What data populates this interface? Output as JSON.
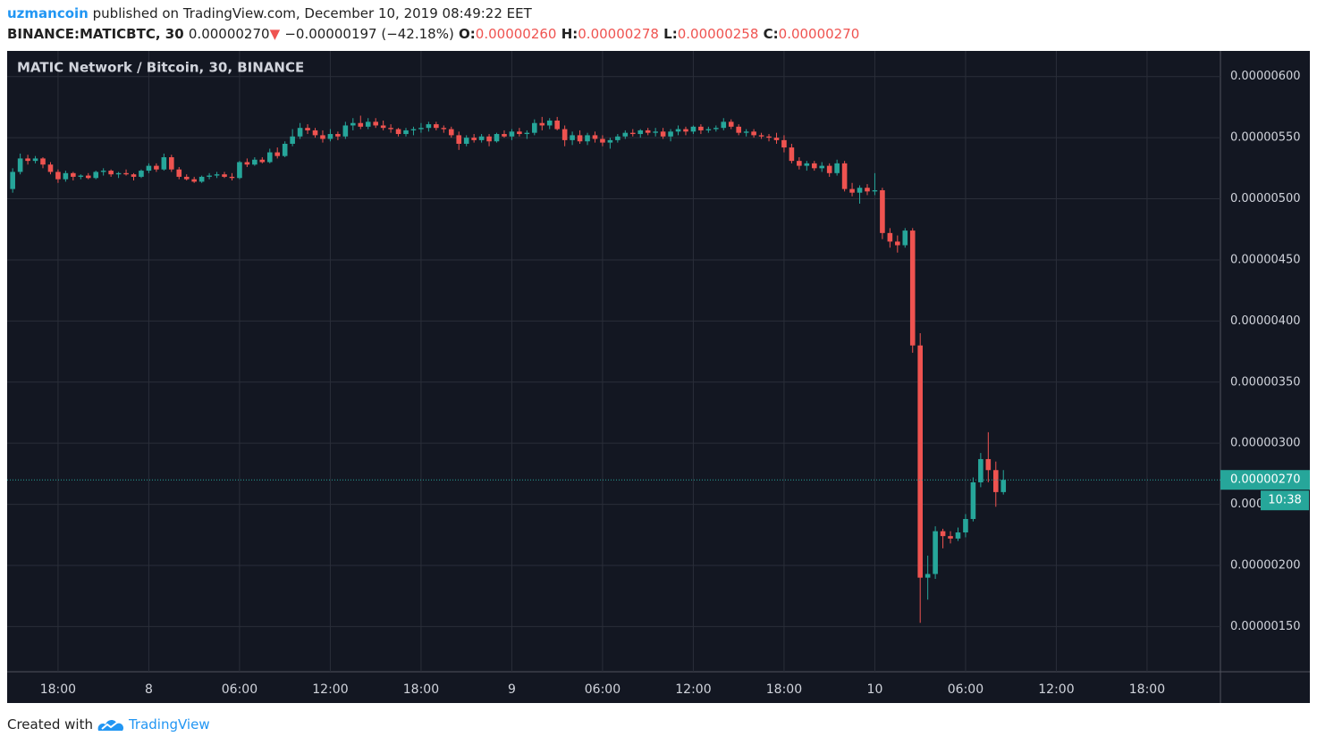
{
  "header": {
    "author": "uzmancoin",
    "published": "published on TradingView.com, December 10, 2019 08:49:22 EET",
    "symbol": "BINANCE:MATICBTC, 30",
    "last": "0.00000270",
    "arrow": "▼",
    "change": "−0.00000197 (−42.18%)",
    "o_label": "O:",
    "o": "0.00000260",
    "h_label": "H:",
    "h": "0.00000278",
    "l_label": "L:",
    "l": "0.00000258",
    "c_label": "C:",
    "c": "0.00000270"
  },
  "footer": {
    "created": "Created with",
    "brand": "TradingView"
  },
  "chart_data": {
    "type": "candlestick",
    "title": "MATIC Network / Bitcoin, 30, BINANCE",
    "up_color": "#26a69a",
    "down_color": "#ef5350",
    "grid": true,
    "xlim": [
      -0.73,
      159.7
    ],
    "xticks": [
      {
        "value": 6,
        "label": "18:00"
      },
      {
        "value": 18,
        "label": "8"
      },
      {
        "value": 30,
        "label": "06:00"
      },
      {
        "value": 42,
        "label": "12:00"
      },
      {
        "value": 54,
        "label": "18:00"
      },
      {
        "value": 66,
        "label": "9"
      },
      {
        "value": 78,
        "label": "06:00"
      },
      {
        "value": 90,
        "label": "12:00"
      },
      {
        "value": 102,
        "label": "18:00"
      },
      {
        "value": 114,
        "label": "10"
      },
      {
        "value": 126,
        "label": "06:00"
      },
      {
        "value": 138,
        "label": "12:00"
      },
      {
        "value": 150,
        "label": "18:00"
      }
    ],
    "ylim": [
      1.13e-06,
      6.21e-06
    ],
    "yticks": [
      {
        "value": 1.5e-06,
        "label": "0.00000150"
      },
      {
        "value": 2e-06,
        "label": "0.00000200"
      },
      {
        "value": 2.5e-06,
        "label": "0.00000250"
      },
      {
        "value": 3e-06,
        "label": "0.00000300"
      },
      {
        "value": 3.5e-06,
        "label": "0.00000350"
      },
      {
        "value": 4e-06,
        "label": "0.00000400"
      },
      {
        "value": 4.5e-06,
        "label": "0.00000450"
      },
      {
        "value": 5e-06,
        "label": "0.00000500"
      },
      {
        "value": 5.5e-06,
        "label": "0.00000550"
      },
      {
        "value": 6e-06,
        "label": "0.00000600"
      }
    ],
    "last_price": {
      "value": 2.7e-06,
      "label": "0.00000270"
    },
    "countdown": "10:38",
    "ohlc": [
      [
        5.08e-06,
        5.25e-06,
        5.05e-06,
        5.22e-06
      ],
      [
        5.22e-06,
        5.37e-06,
        5.2e-06,
        5.33e-06
      ],
      [
        5.33e-06,
        5.36e-06,
        5.28e-06,
        5.31e-06
      ],
      [
        5.31e-06,
        5.35e-06,
        5.29e-06,
        5.33e-06
      ],
      [
        5.33e-06,
        5.34e-06,
        5.25e-06,
        5.28e-06
      ],
      [
        5.28e-06,
        5.3e-06,
        5.2e-06,
        5.22e-06
      ],
      [
        5.22e-06,
        5.24e-06,
        5.13e-06,
        5.16e-06
      ],
      [
        5.16e-06,
        5.23e-06,
        5.14e-06,
        5.21e-06
      ],
      [
        5.21e-06,
        5.22e-06,
        5.15e-06,
        5.18e-06
      ],
      [
        5.18e-06,
        5.2e-06,
        5.16e-06,
        5.19e-06
      ],
      [
        5.19e-06,
        5.21e-06,
        5.16e-06,
        5.17e-06
      ],
      [
        5.17e-06,
        5.23e-06,
        5.16e-06,
        5.22e-06
      ],
      [
        5.22e-06,
        5.25e-06,
        5.19e-06,
        5.23e-06
      ],
      [
        5.23e-06,
        5.24e-06,
        5.18e-06,
        5.2e-06
      ],
      [
        5.2e-06,
        5.22e-06,
        5.17e-06,
        5.21e-06
      ],
      [
        5.21e-06,
        5.24e-06,
        5.19e-06,
        5.2e-06
      ],
      [
        5.2e-06,
        5.21e-06,
        5.15e-06,
        5.18e-06
      ],
      [
        5.18e-06,
        5.24e-06,
        5.17e-06,
        5.23e-06
      ],
      [
        5.23e-06,
        5.29e-06,
        5.21e-06,
        5.27e-06
      ],
      [
        5.27e-06,
        5.29e-06,
        5.22e-06,
        5.24e-06
      ],
      [
        5.24e-06,
        5.37e-06,
        5.23e-06,
        5.34e-06
      ],
      [
        5.34e-06,
        5.36e-06,
        5.22e-06,
        5.24e-06
      ],
      [
        5.24e-06,
        5.26e-06,
        5.16e-06,
        5.18e-06
      ],
      [
        5.18e-06,
        5.2e-06,
        5.15e-06,
        5.16e-06
      ],
      [
        5.16e-06,
        5.18e-06,
        5.13e-06,
        5.14e-06
      ],
      [
        5.14e-06,
        5.19e-06,
        5.13e-06,
        5.18e-06
      ],
      [
        5.18e-06,
        5.21e-06,
        5.16e-06,
        5.19e-06
      ],
      [
        5.19e-06,
        5.22e-06,
        5.17e-06,
        5.2e-06
      ],
      [
        5.2e-06,
        5.22e-06,
        5.17e-06,
        5.18e-06
      ],
      [
        5.18e-06,
        5.21e-06,
        5.15e-06,
        5.17e-06
      ],
      [
        5.17e-06,
        5.31e-06,
        5.16e-06,
        5.3e-06
      ],
      [
        5.3e-06,
        5.33e-06,
        5.26e-06,
        5.28e-06
      ],
      [
        5.28e-06,
        5.34e-06,
        5.27e-06,
        5.32e-06
      ],
      [
        5.32e-06,
        5.34e-06,
        5.29e-06,
        5.3e-06
      ],
      [
        5.3e-06,
        5.41e-06,
        5.29e-06,
        5.38e-06
      ],
      [
        5.38e-06,
        5.42e-06,
        5.33e-06,
        5.35e-06
      ],
      [
        5.35e-06,
        5.47e-06,
        5.34e-06,
        5.45e-06
      ],
      [
        5.45e-06,
        5.57e-06,
        5.43e-06,
        5.51e-06
      ],
      [
        5.51e-06,
        5.62e-06,
        5.49e-06,
        5.58e-06
      ],
      [
        5.58e-06,
        5.61e-06,
        5.53e-06,
        5.56e-06
      ],
      [
        5.56e-06,
        5.58e-06,
        5.5e-06,
        5.52e-06
      ],
      [
        5.52e-06,
        5.56e-06,
        5.46e-06,
        5.49e-06
      ],
      [
        5.49e-06,
        5.57e-06,
        5.47e-06,
        5.53e-06
      ],
      [
        5.53e-06,
        5.55e-06,
        5.48e-06,
        5.51e-06
      ],
      [
        5.51e-06,
        5.63e-06,
        5.49e-06,
        5.6e-06
      ],
      [
        5.6e-06,
        5.66e-06,
        5.56e-06,
        5.62e-06
      ],
      [
        5.62e-06,
        5.68e-06,
        5.57e-06,
        5.59e-06
      ],
      [
        5.59e-06,
        5.66e-06,
        5.57e-06,
        5.63e-06
      ],
      [
        5.63e-06,
        5.66e-06,
        5.58e-06,
        5.6e-06
      ],
      [
        5.6e-06,
        5.64e-06,
        5.56e-06,
        5.58e-06
      ],
      [
        5.58e-06,
        5.61e-06,
        5.54e-06,
        5.57e-06
      ],
      [
        5.57e-06,
        5.58e-06,
        5.51e-06,
        5.53e-06
      ],
      [
        5.53e-06,
        5.58e-06,
        5.51e-06,
        5.56e-06
      ],
      [
        5.56e-06,
        5.59e-06,
        5.52e-06,
        5.57e-06
      ],
      [
        5.57e-06,
        5.62e-06,
        5.54e-06,
        5.58e-06
      ],
      [
        5.58e-06,
        5.63e-06,
        5.55e-06,
        5.61e-06
      ],
      [
        5.61e-06,
        5.63e-06,
        5.56e-06,
        5.58e-06
      ],
      [
        5.58e-06,
        5.6e-06,
        5.54e-06,
        5.57e-06
      ],
      [
        5.57e-06,
        5.59e-06,
        5.5e-06,
        5.52e-06
      ],
      [
        5.52e-06,
        5.55e-06,
        5.4e-06,
        5.45e-06
      ],
      [
        5.45e-06,
        5.52e-06,
        5.43e-06,
        5.5e-06
      ],
      [
        5.5e-06,
        5.53e-06,
        5.46e-06,
        5.48e-06
      ],
      [
        5.48e-06,
        5.53e-06,
        5.46e-06,
        5.51e-06
      ],
      [
        5.51e-06,
        5.53e-06,
        5.43e-06,
        5.47e-06
      ],
      [
        5.47e-06,
        5.54e-06,
        5.46e-06,
        5.53e-06
      ],
      [
        5.53e-06,
        5.56e-06,
        5.5e-06,
        5.51e-06
      ],
      [
        5.51e-06,
        5.57e-06,
        5.48e-06,
        5.55e-06
      ],
      [
        5.55e-06,
        5.58e-06,
        5.51e-06,
        5.53e-06
      ],
      [
        5.53e-06,
        5.56e-06,
        5.49e-06,
        5.54e-06
      ],
      [
        5.54e-06,
        5.65e-06,
        5.52e-06,
        5.62e-06
      ],
      [
        5.62e-06,
        5.67e-06,
        5.56e-06,
        5.6e-06
      ],
      [
        5.6e-06,
        5.66e-06,
        5.57e-06,
        5.64e-06
      ],
      [
        5.64e-06,
        5.67e-06,
        5.56e-06,
        5.57e-06
      ],
      [
        5.57e-06,
        5.6e-06,
        5.43e-06,
        5.48e-06
      ],
      [
        5.48e-06,
        5.55e-06,
        5.44e-06,
        5.52e-06
      ],
      [
        5.52e-06,
        5.56e-06,
        5.45e-06,
        5.47e-06
      ],
      [
        5.47e-06,
        5.54e-06,
        5.44e-06,
        5.52e-06
      ],
      [
        5.52e-06,
        5.55e-06,
        5.46e-06,
        5.49e-06
      ],
      [
        5.49e-06,
        5.52e-06,
        5.43e-06,
        5.46e-06
      ],
      [
        5.46e-06,
        5.5e-06,
        5.41e-06,
        5.48e-06
      ],
      [
        5.48e-06,
        5.53e-06,
        5.46e-06,
        5.51e-06
      ],
      [
        5.51e-06,
        5.56e-06,
        5.49e-06,
        5.54e-06
      ],
      [
        5.54e-06,
        5.57e-06,
        5.51e-06,
        5.53e-06
      ],
      [
        5.53e-06,
        5.57e-06,
        5.5e-06,
        5.56e-06
      ],
      [
        5.56e-06,
        5.58e-06,
        5.52e-06,
        5.54e-06
      ],
      [
        5.54e-06,
        5.58e-06,
        5.51e-06,
        5.55e-06
      ],
      [
        5.55e-06,
        5.58e-06,
        5.49e-06,
        5.51e-06
      ],
      [
        5.51e-06,
        5.57e-06,
        5.47e-06,
        5.55e-06
      ],
      [
        5.55e-06,
        5.6e-06,
        5.52e-06,
        5.57e-06
      ],
      [
        5.57e-06,
        5.59e-06,
        5.52e-06,
        5.55e-06
      ],
      [
        5.55e-06,
        5.6e-06,
        5.53e-06,
        5.59e-06
      ],
      [
        5.59e-06,
        5.61e-06,
        5.53e-06,
        5.56e-06
      ],
      [
        5.56e-06,
        5.59e-06,
        5.54e-06,
        5.57e-06
      ],
      [
        5.57e-06,
        5.6e-06,
        5.55e-06,
        5.58e-06
      ],
      [
        5.58e-06,
        5.66e-06,
        5.56e-06,
        5.63e-06
      ],
      [
        5.63e-06,
        5.65e-06,
        5.57e-06,
        5.59e-06
      ],
      [
        5.59e-06,
        5.61e-06,
        5.52e-06,
        5.54e-06
      ],
      [
        5.54e-06,
        5.57e-06,
        5.51e-06,
        5.55e-06
      ],
      [
        5.55e-06,
        5.57e-06,
        5.5e-06,
        5.52e-06
      ],
      [
        5.52e-06,
        5.54e-06,
        5.49e-06,
        5.51e-06
      ],
      [
        5.51e-06,
        5.53e-06,
        5.47e-06,
        5.5e-06
      ],
      [
        5.5e-06,
        5.54e-06,
        5.45e-06,
        5.48e-06
      ],
      [
        5.48e-06,
        5.52e-06,
        5.38e-06,
        5.42e-06
      ],
      [
        5.42e-06,
        5.45e-06,
        5.29e-06,
        5.31e-06
      ],
      [
        5.31e-06,
        5.34e-06,
        5.24e-06,
        5.27e-06
      ],
      [
        5.27e-06,
        5.31e-06,
        5.23e-06,
        5.29e-06
      ],
      [
        5.29e-06,
        5.31e-06,
        5.23e-06,
        5.25e-06
      ],
      [
        5.25e-06,
        5.3e-06,
        5.22e-06,
        5.27e-06
      ],
      [
        5.27e-06,
        5.29e-06,
        5.18e-06,
        5.21e-06
      ],
      [
        5.21e-06,
        5.32e-06,
        5.19e-06,
        5.29e-06
      ],
      [
        5.29e-06,
        5.31e-06,
        5.06e-06,
        5.08e-06
      ],
      [
        5.08e-06,
        5.13e-06,
        5.02e-06,
        5.05e-06
      ],
      [
        5.05e-06,
        5.11e-06,
        4.96e-06,
        5.09e-06
      ],
      [
        5.09e-06,
        5.12e-06,
        5.03e-06,
        5.06e-06
      ],
      [
        5.06e-06,
        5.21e-06,
        5.03e-06,
        5.07e-06
      ],
      [
        5.07e-06,
        5.09e-06,
        4.67e-06,
        4.72e-06
      ],
      [
        4.72e-06,
        4.76e-06,
        4.6e-06,
        4.65e-06
      ],
      [
        4.65e-06,
        4.7e-06,
        4.56e-06,
        4.62e-06
      ],
      [
        4.62e-06,
        4.76e-06,
        4.6e-06,
        4.74e-06
      ],
      [
        4.74e-06,
        4.76e-06,
        3.74e-06,
        3.8e-06
      ],
      [
        3.8e-06,
        3.9e-06,
        1.53e-06,
        1.9e-06
      ],
      [
        1.9e-06,
        2.08e-06,
        1.72e-06,
        1.93e-06
      ],
      [
        1.93e-06,
        2.32e-06,
        1.89e-06,
        2.28e-06
      ],
      [
        2.28e-06,
        2.3e-06,
        2.14e-06,
        2.24e-06
      ],
      [
        2.24e-06,
        2.28e-06,
        2.18e-06,
        2.22e-06
      ],
      [
        2.22e-06,
        2.31e-06,
        2.2e-06,
        2.27e-06
      ],
      [
        2.27e-06,
        2.42e-06,
        2.23e-06,
        2.38e-06
      ],
      [
        2.38e-06,
        2.72e-06,
        2.36e-06,
        2.68e-06
      ],
      [
        2.68e-06,
        2.92e-06,
        2.64e-06,
        2.87e-06
      ],
      [
        2.87e-06,
        3.09e-06,
        2.68e-06,
        2.78e-06
      ],
      [
        2.78e-06,
        2.85e-06,
        2.48e-06,
        2.6e-06
      ],
      [
        2.6e-06,
        2.78e-06,
        2.58e-06,
        2.7e-06
      ]
    ]
  }
}
